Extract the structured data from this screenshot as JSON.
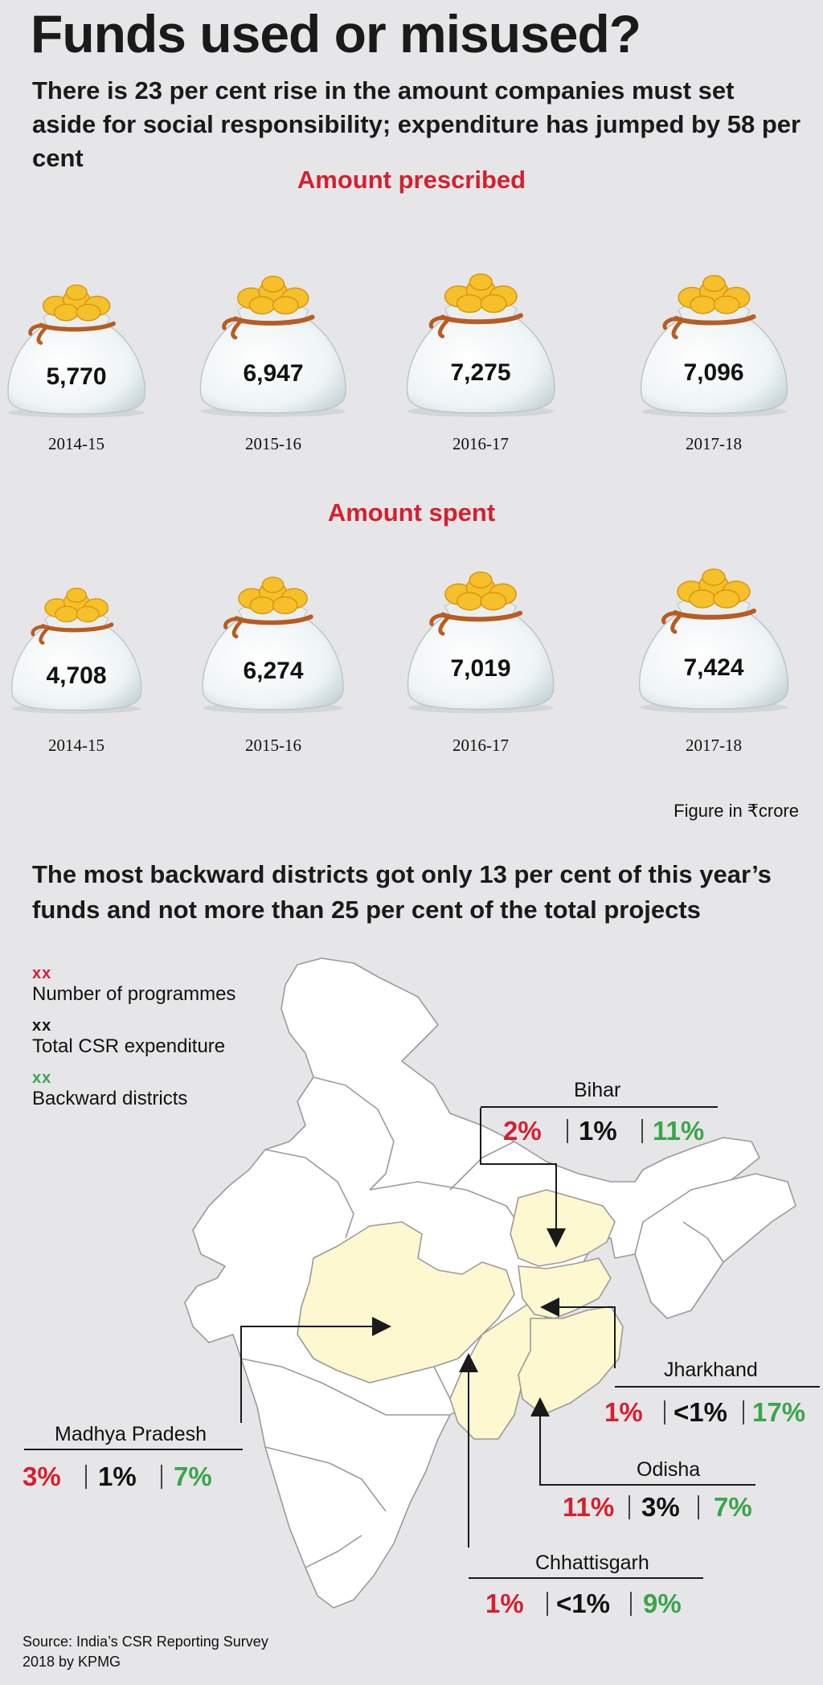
{
  "title": "Funds used or misused?",
  "subtitle": "There is 23 per cent rise in the amount companies must set aside for social responsibility; expenditure has jumped by 58 per cent",
  "colors": {
    "red": "#d5202f",
    "green": "#3aa54a",
    "highlight_states": "#fdf8cf"
  },
  "chart_data": [
    {
      "type": "bar",
      "title": "Amount prescribed",
      "categories": [
        "2014-15",
        "2015-16",
        "2016-17",
        "2017-18"
      ],
      "values": [
        5770,
        6947,
        7275,
        7096
      ],
      "value_labels": [
        "5,770",
        "6,947",
        "7,275",
        "7,096"
      ]
    },
    {
      "type": "bar",
      "title": "Amount spent",
      "categories": [
        "2014-15",
        "2015-16",
        "2016-17",
        "2017-18"
      ],
      "values": [
        4708,
        6274,
        7019,
        7424
      ],
      "value_labels": [
        "4,708",
        "6,274",
        "7,019",
        "7,424"
      ]
    }
  ],
  "unit_note": "Figure in ₹crore",
  "map_heading": "The most backward districts got only 13 per cent of this year’s funds and not more than 25 per cent of the total projects",
  "legend": [
    {
      "code": "xx",
      "label": "Number of programmes",
      "color": "red"
    },
    {
      "code": "xx",
      "label": "Total CSR expenditure",
      "color": "black"
    },
    {
      "code": "xx",
      "label": "Backward districts",
      "color": "green"
    }
  ],
  "states": [
    {
      "name": "Bihar",
      "programmes": "2%",
      "expenditure": "1%",
      "backward": "11%"
    },
    {
      "name": "Jharkhand",
      "programmes": "1%",
      "expenditure": "<1%",
      "backward": "17%"
    },
    {
      "name": "Madhya Pradesh",
      "programmes": "3%",
      "expenditure": "1%",
      "backward": "7%"
    },
    {
      "name": "Odisha",
      "programmes": "11%",
      "expenditure": "3%",
      "backward": "7%"
    },
    {
      "name": "Chhattisgarh",
      "programmes": "1%",
      "expenditure": "<1%",
      "backward": "9%"
    }
  ],
  "source": "Source: India’s CSR Reporting Survey 2018 by KPMG"
}
